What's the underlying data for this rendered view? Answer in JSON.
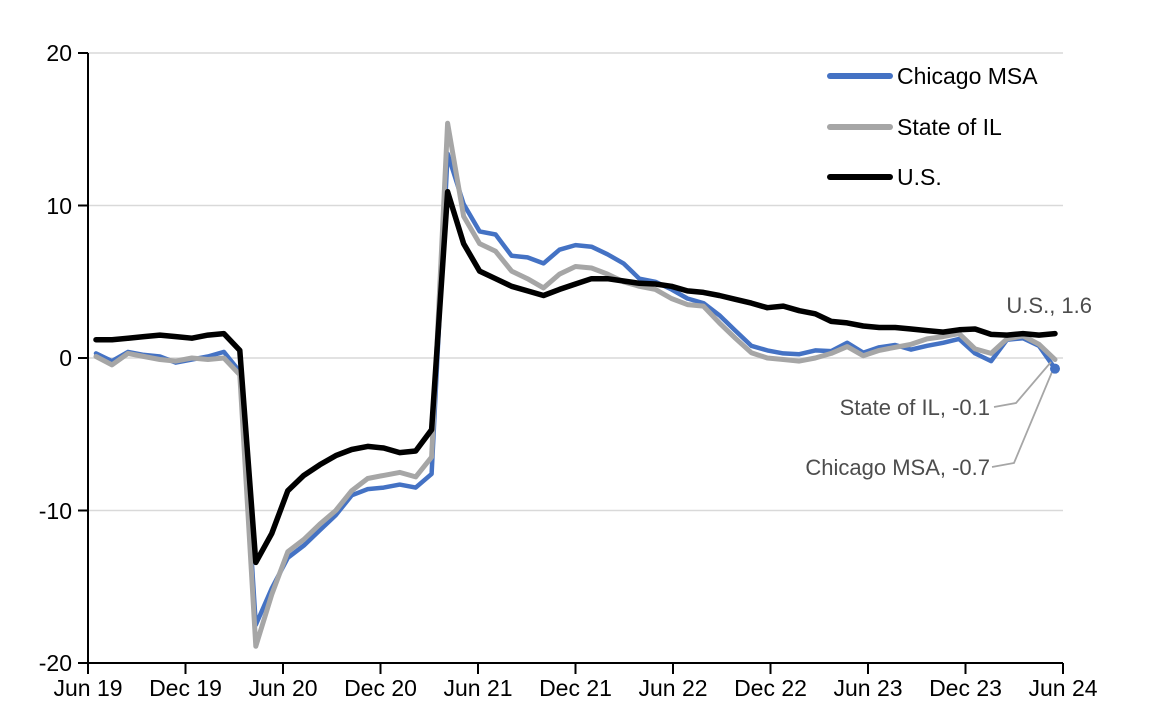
{
  "chart_data": {
    "type": "line",
    "title": "",
    "xlabel": "",
    "ylabel": "",
    "ylim": [
      -20,
      20
    ],
    "y_tick_labels": [
      "20",
      "10",
      "0",
      "-10",
      "-20"
    ],
    "y_tick_values": [
      20,
      10,
      0,
      -10,
      -20
    ],
    "x_tick_labels": [
      "Jun 19",
      "Dec 19",
      "Jun 20",
      "Dec 20",
      "Jun 21",
      "Dec 21",
      "Jun 22",
      "Dec 22",
      "Jun 23",
      "Dec 23",
      "Jun 24"
    ],
    "x_frequency": "monthly",
    "grid": "horizontal-only",
    "gridline_color": "#D9D9D9",
    "axis_color": "#000000",
    "legend_position": "top-right",
    "annotation_text_color": "#4d4d4d",
    "leader_line_color": "#A6A6A6",
    "series": [
      {
        "name": "Chicago MSA",
        "color": "#4472C4",
        "end_marker": true,
        "values": [
          0.3,
          -0.2,
          0.4,
          0.2,
          0.1,
          -0.3,
          -0.1,
          0.1,
          0.4,
          -0.9,
          -17.5,
          -15.1,
          -13.1,
          -12.3,
          -11.3,
          -10.3,
          -9.0,
          -8.6,
          -8.5,
          -8.3,
          -8.5,
          -7.6,
          13.4,
          10.1,
          8.3,
          8.1,
          6.7,
          6.6,
          6.2,
          7.1,
          7.4,
          7.3,
          6.8,
          6.2,
          5.2,
          5.0,
          4.5,
          3.9,
          3.6,
          2.8,
          1.8,
          0.8,
          0.5,
          0.3,
          0.25,
          0.5,
          0.45,
          1.0,
          0.35,
          0.7,
          0.85,
          0.55,
          0.8,
          1.0,
          1.25,
          0.3,
          -0.2,
          1.2,
          1.3,
          0.8,
          -0.7
        ]
      },
      {
        "name": "State of IL",
        "color": "#A6A6A6",
        "end_marker": false,
        "values": [
          0.1,
          -0.45,
          0.3,
          0.1,
          -0.1,
          -0.2,
          0.0,
          -0.1,
          0.0,
          -1.1,
          -18.9,
          -15.5,
          -12.7,
          -11.9,
          -10.9,
          -10.0,
          -8.7,
          -7.9,
          -7.7,
          -7.5,
          -7.8,
          -6.5,
          15.4,
          9.3,
          7.5,
          7.0,
          5.7,
          5.2,
          4.6,
          5.5,
          6.0,
          5.9,
          5.5,
          5.0,
          4.7,
          4.5,
          3.9,
          3.5,
          3.4,
          2.3,
          1.3,
          0.35,
          0.0,
          -0.1,
          -0.2,
          0.0,
          0.3,
          0.75,
          0.15,
          0.5,
          0.7,
          0.9,
          1.25,
          1.4,
          1.6,
          0.6,
          0.3,
          1.25,
          1.45,
          0.9,
          -0.1
        ]
      },
      {
        "name": "U.S.",
        "color": "#000000",
        "end_marker": false,
        "values": [
          1.2,
          1.2,
          1.3,
          1.4,
          1.5,
          1.4,
          1.3,
          1.5,
          1.6,
          0.5,
          -13.4,
          -11.5,
          -8.7,
          -7.7,
          -7.0,
          -6.4,
          -6.0,
          -5.8,
          -5.9,
          -6.2,
          -6.1,
          -4.7,
          10.9,
          7.5,
          5.7,
          5.2,
          4.7,
          4.4,
          4.1,
          4.5,
          4.85,
          5.2,
          5.2,
          5.05,
          4.9,
          4.85,
          4.7,
          4.4,
          4.3,
          4.1,
          3.85,
          3.6,
          3.3,
          3.4,
          3.1,
          2.9,
          2.4,
          2.3,
          2.1,
          2.0,
          2.0,
          1.9,
          1.8,
          1.7,
          1.85,
          1.9,
          1.55,
          1.5,
          1.6,
          1.5,
          1.6
        ]
      }
    ],
    "annotations": [
      {
        "text": "U.S., 1.6",
        "series": "U.S.",
        "value": 1.6
      },
      {
        "text": "State of IL, -0.1",
        "series": "State of IL",
        "value": -0.1
      },
      {
        "text": "Chicago MSA, -0.7",
        "series": "Chicago MSA",
        "value": -0.7
      }
    ]
  },
  "legend": {
    "items": [
      {
        "label": "Chicago MSA"
      },
      {
        "label": "State of IL"
      },
      {
        "label": "U.S."
      }
    ]
  }
}
